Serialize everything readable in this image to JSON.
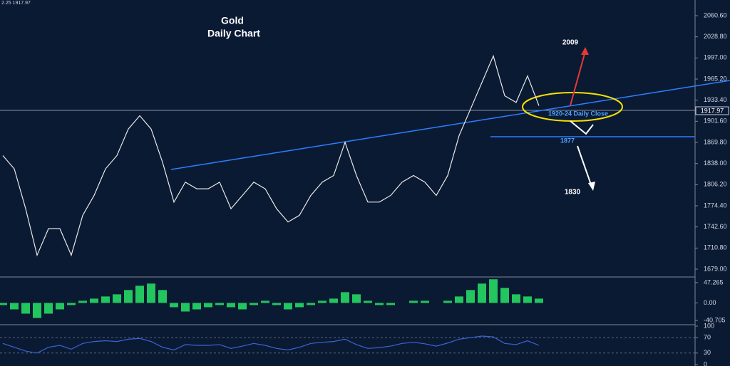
{
  "header": "2.25 1917.97",
  "chart_data": [
    {
      "type": "line",
      "title": "Gold",
      "subtitle": "Daily Chart",
      "annotations": [
        "2009",
        "1920-24 Daily Close",
        "1877",
        "1830"
      ],
      "last_price": "1917.97",
      "series": [
        {
          "color": "#e8e8e8",
          "values": [
            1850,
            1830,
            1770,
            1700,
            1740,
            1740,
            1700,
            1760,
            1790,
            1830,
            1850,
            1890,
            1910,
            1890,
            1840,
            1780,
            1810,
            1800,
            1800,
            1810,
            1770,
            1790,
            1810,
            1800,
            1770,
            1750,
            1760,
            1790,
            1810,
            1820,
            1870,
            1820,
            1780,
            1780,
            1790,
            1810,
            1820,
            1810,
            1790,
            1820,
            1880,
            1920,
            1960,
            2000,
            1940,
            1930,
            1970,
            1925
          ]
        }
      ],
      "ylim": [
        1668.3,
        2084.2
      ],
      "yticks": [
        {
          "value": 2060.6,
          "label": "2060.60"
        },
        {
          "value": 2028.8,
          "label": "2028.80"
        },
        {
          "value": 1997,
          "label": "1997.00"
        },
        {
          "value": 1965.2,
          "label": "1965.20"
        },
        {
          "value": 1933.4,
          "label": "1933.40"
        },
        {
          "value": 1901.6,
          "label": "1901.60"
        },
        {
          "value": 1869.8,
          "label": "1869.80"
        },
        {
          "value": 1838,
          "label": "1838.00"
        },
        {
          "value": 1806.2,
          "label": "1806.20"
        },
        {
          "value": 1774.4,
          "label": "1774.40"
        },
        {
          "value": 1742.6,
          "label": "1742.60"
        },
        {
          "value": 1710.8,
          "label": "1710.80"
        },
        {
          "value": 1679,
          "label": "1679.00"
        }
      ]
    },
    {
      "type": "bar",
      "color": "#22c55e",
      "values": [
        -5,
        -15,
        -25,
        -35,
        -25,
        -15,
        -5,
        5,
        10,
        15,
        20,
        30,
        40,
        45,
        30,
        -10,
        -20,
        -15,
        -10,
        -5,
        -10,
        -15,
        -5,
        5,
        -5,
        -15,
        -10,
        -5,
        5,
        10,
        25,
        20,
        5,
        -5,
        -5,
        0,
        5,
        5,
        0,
        5,
        15,
        30,
        45,
        55,
        35,
        20,
        15,
        10
      ],
      "ylim": [
        -49,
        57
      ],
      "yticks": [
        47.265,
        {
          "value": 0,
          "label": "0.00"
        },
        -40.705
      ]
    },
    {
      "type": "line",
      "series": [
        {
          "color": "#3b63d6",
          "values": [
            55,
            45,
            35,
            30,
            45,
            50,
            40,
            55,
            60,
            62,
            60,
            66,
            68,
            60,
            45,
            38,
            52,
            50,
            50,
            52,
            42,
            48,
            55,
            50,
            42,
            38,
            45,
            55,
            58,
            60,
            66,
            52,
            42,
            44,
            48,
            55,
            58,
            54,
            48,
            56,
            66,
            70,
            74,
            72,
            55,
            52,
            62,
            50
          ]
        }
      ],
      "ylim": [
        0,
        100
      ],
      "yticks": [
        100,
        70,
        30,
        0
      ]
    }
  ]
}
